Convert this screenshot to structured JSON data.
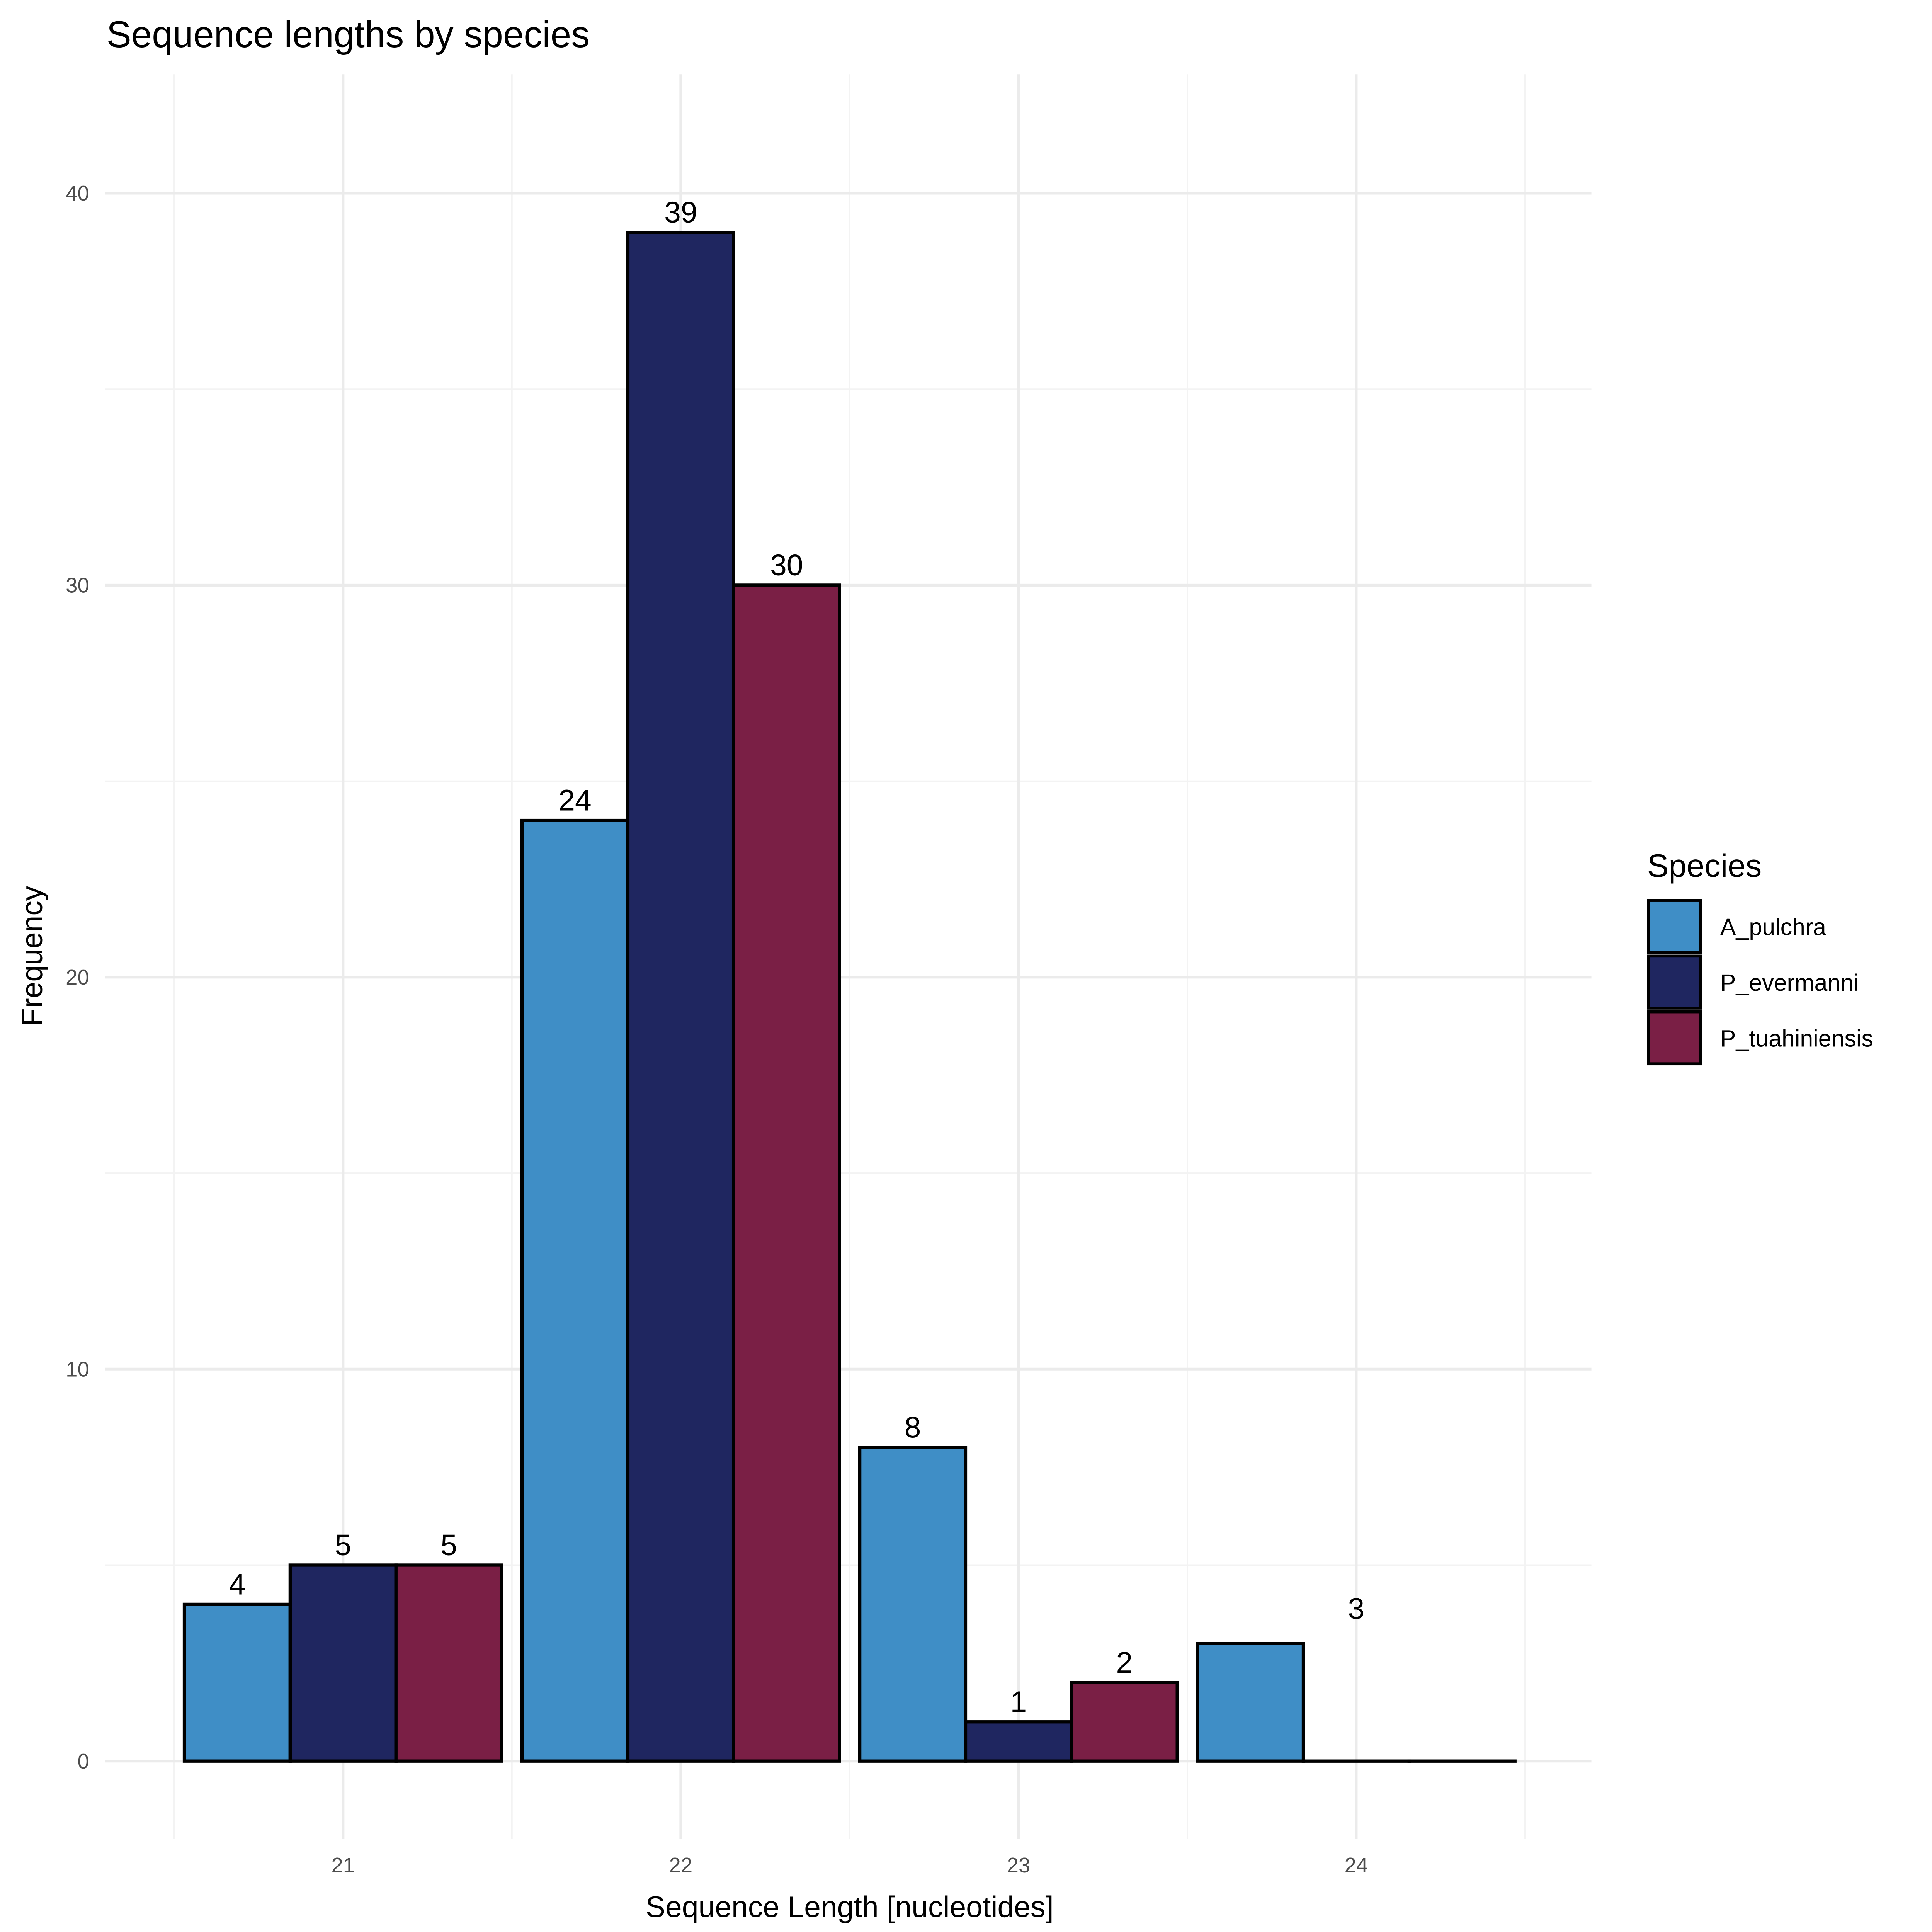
{
  "chart_data": {
    "type": "bar",
    "title": "Sequence lengths by species",
    "xlabel": "Sequence Length [nucleotides]",
    "ylabel": "Frequency",
    "categories": [
      "21",
      "22",
      "23",
      "24"
    ],
    "x_values": [
      21,
      22,
      23,
      24
    ],
    "xlim": [
      20.3,
      24.7
    ],
    "ylim": [
      -2,
      42
    ],
    "y_ticks": [
      0,
      10,
      20,
      30,
      40
    ],
    "grid": true,
    "legend": {
      "title": "Species",
      "placement": "right"
    },
    "series": [
      {
        "name": "A_pulchra",
        "color": "#3f8ec6",
        "values": [
          4,
          24,
          8,
          3
        ]
      },
      {
        "name": "P_evermanni",
        "color": "#1f2660",
        "values": [
          5,
          39,
          1,
          0
        ]
      },
      {
        "name": "P_tuahiniensis",
        "color": "#7a1f45",
        "values": [
          5,
          30,
          2,
          0
        ]
      }
    ]
  }
}
